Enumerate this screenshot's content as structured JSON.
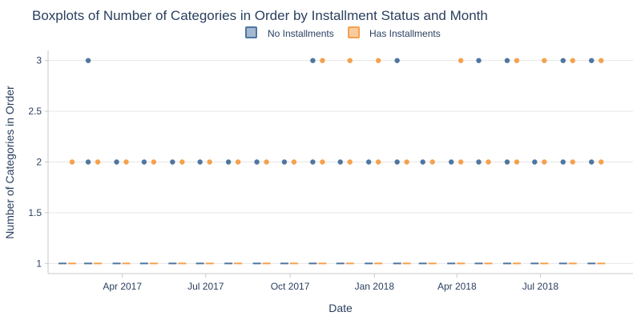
{
  "colors": {
    "no_installments": "#4f76a0",
    "has_installments": "#f5a14e",
    "background": "#ffffff",
    "grid": "#e6e6e6",
    "text": "#2a3f5f"
  },
  "chart_data": {
    "type": "box",
    "title": "Boxplots of Number of Categories in Order by Installment Status and Month",
    "xlabel": "Date",
    "ylabel": "Number of Categories in Order",
    "legend_placement": "top-center",
    "grid": true,
    "xlim": [
      "2017-01-10",
      "2018-10-10"
    ],
    "ylim": [
      0.9,
      3.1
    ],
    "x_ticks": [
      {
        "date": "2017-04-01",
        "label": "Apr 2017"
      },
      {
        "date": "2017-07-01",
        "label": "Jul 2017"
      },
      {
        "date": "2017-10-01",
        "label": "Oct 2017"
      },
      {
        "date": "2018-01-01",
        "label": "Jan 2018"
      },
      {
        "date": "2018-04-01",
        "label": "Apr 2018"
      },
      {
        "date": "2018-07-01",
        "label": "Jul 2018"
      }
    ],
    "y_ticks": [
      {
        "value": 1,
        "label": "1"
      },
      {
        "value": 1.5,
        "label": "1.5"
      },
      {
        "value": 2,
        "label": "2"
      },
      {
        "value": 2.5,
        "label": "2.5"
      },
      {
        "value": 3,
        "label": "3"
      }
    ],
    "series": [
      {
        "name": "No Installments",
        "color": "#4f76a0",
        "box_value": 1,
        "months": [
          {
            "date": "2017-01-31",
            "outliers": []
          },
          {
            "date": "2017-02-28",
            "outliers": [
              2,
              3
            ]
          },
          {
            "date": "2017-03-31",
            "outliers": [
              2
            ]
          },
          {
            "date": "2017-04-30",
            "outliers": [
              2
            ]
          },
          {
            "date": "2017-05-31",
            "outliers": [
              2
            ]
          },
          {
            "date": "2017-06-30",
            "outliers": [
              2
            ]
          },
          {
            "date": "2017-07-31",
            "outliers": [
              2
            ]
          },
          {
            "date": "2017-08-31",
            "outliers": [
              2
            ]
          },
          {
            "date": "2017-09-30",
            "outliers": [
              2
            ]
          },
          {
            "date": "2017-10-31",
            "outliers": [
              2,
              3
            ]
          },
          {
            "date": "2017-11-30",
            "outliers": [
              2
            ]
          },
          {
            "date": "2017-12-31",
            "outliers": [
              2
            ]
          },
          {
            "date": "2018-01-31",
            "outliers": [
              2,
              3
            ]
          },
          {
            "date": "2018-02-28",
            "outliers": [
              2
            ]
          },
          {
            "date": "2018-03-31",
            "outliers": [
              2
            ]
          },
          {
            "date": "2018-04-30",
            "outliers": [
              2,
              3
            ]
          },
          {
            "date": "2018-05-31",
            "outliers": [
              2,
              3
            ]
          },
          {
            "date": "2018-06-30",
            "outliers": [
              2
            ]
          },
          {
            "date": "2018-07-31",
            "outliers": [
              2,
              3
            ]
          },
          {
            "date": "2018-08-31",
            "outliers": [
              2,
              3
            ]
          }
        ]
      },
      {
        "name": "Has Installments",
        "color": "#f5a14e",
        "box_value": 1,
        "months": [
          {
            "date": "2017-01-31",
            "outliers": [
              2
            ]
          },
          {
            "date": "2017-02-28",
            "outliers": [
              2
            ]
          },
          {
            "date": "2017-03-31",
            "outliers": [
              2
            ]
          },
          {
            "date": "2017-04-30",
            "outliers": [
              2
            ]
          },
          {
            "date": "2017-05-31",
            "outliers": [
              2
            ]
          },
          {
            "date": "2017-06-30",
            "outliers": [
              2
            ]
          },
          {
            "date": "2017-07-31",
            "outliers": [
              2
            ]
          },
          {
            "date": "2017-08-31",
            "outliers": [
              2
            ]
          },
          {
            "date": "2017-09-30",
            "outliers": [
              2
            ]
          },
          {
            "date": "2017-10-31",
            "outliers": [
              2,
              3
            ]
          },
          {
            "date": "2017-11-30",
            "outliers": [
              2,
              3
            ]
          },
          {
            "date": "2017-12-31",
            "outliers": [
              2,
              3
            ]
          },
          {
            "date": "2018-01-31",
            "outliers": [
              2
            ]
          },
          {
            "date": "2018-02-28",
            "outliers": [
              2
            ]
          },
          {
            "date": "2018-03-31",
            "outliers": [
              2,
              3
            ]
          },
          {
            "date": "2018-04-30",
            "outliers": [
              2
            ]
          },
          {
            "date": "2018-05-31",
            "outliers": [
              2,
              3
            ]
          },
          {
            "date": "2018-06-30",
            "outliers": [
              2,
              3
            ]
          },
          {
            "date": "2018-07-31",
            "outliers": [
              2,
              3
            ]
          },
          {
            "date": "2018-08-31",
            "outliers": [
              2,
              3
            ]
          }
        ]
      }
    ]
  }
}
